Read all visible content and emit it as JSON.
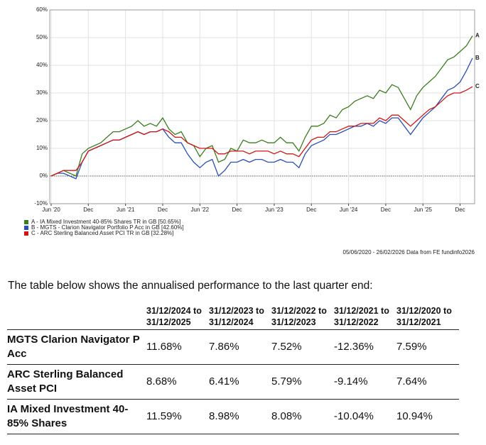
{
  "chart_data": {
    "type": "line",
    "categories": [
      "Jun '20",
      null,
      null,
      null,
      null,
      null,
      "Dec",
      null,
      null,
      null,
      null,
      null,
      "Jun '21",
      null,
      null,
      null,
      null,
      null,
      "Dec",
      null,
      null,
      null,
      null,
      null,
      "Jun '22",
      null,
      null,
      null,
      null,
      null,
      "Dec",
      null,
      null,
      null,
      null,
      null,
      "Jun '23",
      null,
      null,
      null,
      null,
      null,
      "Dec",
      null,
      null,
      null,
      null,
      null,
      "Jun '24",
      null,
      null,
      null,
      null,
      null,
      "Dec",
      null,
      null,
      null,
      null,
      null,
      "Jun '25",
      null,
      null,
      null,
      null,
      null,
      "Dec",
      null,
      null
    ],
    "series": [
      {
        "name": "A - IA Mixed Investment 40-85% Shares TR in GB [50.65%]",
        "label": "A",
        "color": "#3a7d1e",
        "values": [
          0,
          1,
          2,
          1,
          0,
          8,
          10,
          11,
          12,
          14,
          16,
          16,
          17,
          18,
          20,
          18,
          19,
          18,
          21,
          17,
          15,
          16,
          12,
          11,
          7,
          10,
          11,
          5,
          6,
          10,
          9,
          13,
          12,
          12,
          13,
          12,
          12,
          14,
          12,
          12,
          9,
          14,
          18,
          18,
          19,
          22,
          21,
          24,
          25,
          27,
          28,
          29,
          28,
          31,
          30,
          33,
          32,
          28,
          24,
          29,
          32,
          34,
          36,
          39,
          42,
          43,
          45,
          47,
          50.65
        ]
      },
      {
        "name": "B - MGTS - Clarion Navigator Portfolio P Acc in GB [42.60%]",
        "label": "B",
        "color": "#2a4fb5",
        "values": [
          0,
          1,
          1,
          0,
          -1,
          5,
          9,
          10,
          11,
          12,
          13,
          13,
          14,
          15,
          16,
          15,
          16,
          16,
          17,
          14,
          12,
          12,
          8,
          5,
          3,
          5,
          6,
          0,
          2,
          5,
          5,
          6,
          5,
          6,
          6,
          5,
          5,
          6,
          5,
          5,
          3,
          8,
          11,
          12,
          13,
          15,
          15,
          16,
          17,
          18,
          18,
          19,
          18,
          20,
          19,
          21,
          21,
          18,
          15,
          18,
          21,
          23,
          25,
          28,
          31,
          32,
          34,
          38,
          42.6
        ]
      },
      {
        "name": "C - ARC Sterling Balanced Asset PCI TR in GB [32.28%]",
        "label": "C",
        "color": "#d01515",
        "values": [
          0,
          1,
          2,
          2,
          2,
          5,
          9,
          10,
          11,
          12,
          13,
          13,
          14,
          15,
          16,
          15,
          16,
          16,
          17,
          16,
          14,
          14,
          12,
          11,
          10,
          10,
          10,
          8,
          8,
          9,
          9,
          9,
          8,
          9,
          9,
          9,
          8,
          9,
          8,
          8,
          7,
          10,
          13,
          14,
          14,
          16,
          16,
          17,
          18,
          18,
          19,
          19,
          19,
          21,
          20,
          22,
          22,
          20,
          18,
          20,
          22,
          24,
          25,
          27,
          29,
          30,
          30,
          31,
          32.28
        ]
      }
    ],
    "ylim": [
      -10,
      60
    ],
    "yticks": [
      {
        "value": -10,
        "label": "-10%"
      },
      {
        "value": 0,
        "label": "0%"
      },
      {
        "value": 10,
        "label": "10%"
      },
      {
        "value": 20,
        "label": "20%"
      },
      {
        "value": 30,
        "label": "30%"
      },
      {
        "value": 40,
        "label": "40%"
      },
      {
        "value": 50,
        "label": "50%"
      },
      {
        "value": 60,
        "label": "60%"
      }
    ],
    "grid": true,
    "source": "05/06/2020 - 26/02/2026 Data from FE fundinfo2026"
  },
  "intro": "The table below shows the annualised performance to the last quarter end:",
  "table": {
    "header": [
      "31/12/2024 to 31/12/2025",
      "31/12/2023 to 31/12/2024",
      "31/12/2022 to 31/12/2023",
      "31/12/2021 to 31/12/2022",
      "31/12/2020 to 31/12/2021"
    ],
    "rows": [
      [
        "MGTS Clarion Navigator P Acc",
        "11.68%",
        "7.86%",
        "7.52%",
        "-12.36%",
        "7.59%"
      ],
      [
        "ARC Sterling Balanced Asset PCI",
        "8.68%",
        "6.41%",
        "5.79%",
        "-9.14%",
        "7.64%"
      ],
      [
        "IA Mixed Investment 40-85% Shares",
        "11.59%",
        "8.98%",
        "8.08%",
        "-10.04%",
        "10.94%"
      ]
    ]
  }
}
